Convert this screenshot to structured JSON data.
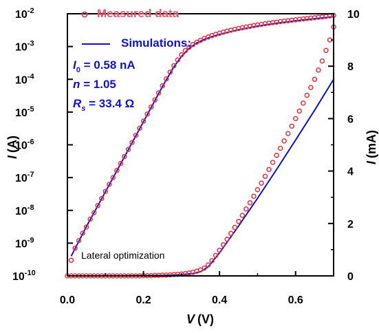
{
  "chart_data": {
    "type": "scatter",
    "x_axis": {
      "label_var": "V",
      "label_unit": "(V)",
      "range": [
        0.0,
        0.7
      ],
      "ticks": [
        0.0,
        0.2,
        0.4,
        0.6
      ],
      "tick_labels": [
        "0.0",
        "0.2",
        "0.4",
        "0.6"
      ]
    },
    "y_left_axis": {
      "label_var": "I",
      "label_unit": "(A)",
      "scale": "log",
      "range": [
        1e-10,
        0.01
      ],
      "tick_exponents": [
        -2,
        -3,
        -4,
        -5,
        -6,
        -7,
        -8,
        -9,
        -10
      ],
      "tick_base": "10"
    },
    "y_right_axis": {
      "label_var": "I",
      "label_unit": "(mA)",
      "scale": "linear",
      "range": [
        0,
        10
      ],
      "ticks": [
        0,
        2,
        4,
        6,
        8,
        10
      ],
      "tick_labels": [
        "0",
        "2",
        "4",
        "6",
        "8",
        "10"
      ]
    },
    "legend": {
      "placement": "top-left",
      "measured_label": "Measured data",
      "sim_label": "Simulations:",
      "params": [
        {
          "sym": "I",
          "sub": "0",
          "rest": " = 0.58 nA"
        },
        {
          "sym": "n",
          "sub": "",
          "rest": " = 1.05"
        },
        {
          "sym": "R",
          "sub": "s",
          "rest": " = 33.4 Ω"
        }
      ]
    },
    "annotation": "Lateral optimization",
    "colors": {
      "measured": "#e8303e",
      "simulation": "#1010d0",
      "param_text": "#1010d0",
      "legend_measured_text": "#ee5566"
    },
    "series": [
      {
        "name": "Measured data",
        "marker": "open-circle",
        "axis": "left-log",
        "x": [
          0.01,
          0.02,
          0.03,
          0.04,
          0.05,
          0.06,
          0.07,
          0.08,
          0.09,
          0.1,
          0.11,
          0.12,
          0.13,
          0.14,
          0.15,
          0.16,
          0.17,
          0.18,
          0.19,
          0.2,
          0.21,
          0.22,
          0.23,
          0.24,
          0.25,
          0.26,
          0.27,
          0.28,
          0.29,
          0.3,
          0.31,
          0.32,
          0.33,
          0.34,
          0.35,
          0.36,
          0.37,
          0.38,
          0.39,
          0.4,
          0.41,
          0.42,
          0.43,
          0.44,
          0.45,
          0.46,
          0.47,
          0.48,
          0.49,
          0.5,
          0.51,
          0.52,
          0.53,
          0.54,
          0.55,
          0.56,
          0.57,
          0.58,
          0.59,
          0.6,
          0.61,
          0.62,
          0.63,
          0.64,
          0.65,
          0.66,
          0.67,
          0.68,
          0.69,
          0.7
        ],
        "y": [
          3e-10,
          7e-10,
          1.2e-09,
          2e-09,
          3.1e-09,
          5.4e-09,
          8.5e-09,
          1.4e-08,
          2.3e-08,
          3.8e-08,
          6.2e-08,
          1e-07,
          1.65e-07,
          2.7e-07,
          4.4e-07,
          7.2e-07,
          1.18e-06,
          1.95e-06,
          3.2e-06,
          5.3e-06,
          8.7e-06,
          1.43e-05,
          2.35e-05,
          3.85e-05,
          6.3e-05,
          0.000103,
          0.000165,
          0.00026,
          0.00039,
          0.00056,
          0.00075,
          0.00095,
          0.00115,
          0.00135,
          0.00155,
          0.00175,
          0.00195,
          0.00215,
          0.00235,
          0.00255,
          0.00275,
          0.00295,
          0.00315,
          0.00335,
          0.00355,
          0.00375,
          0.00395,
          0.00415,
          0.00435,
          0.00455,
          0.00475,
          0.00495,
          0.00515,
          0.00535,
          0.00555,
          0.00575,
          0.00595,
          0.00615,
          0.00635,
          0.00655,
          0.00675,
          0.00695,
          0.00715,
          0.0074,
          0.0076,
          0.0078,
          0.008,
          0.0083,
          0.0086,
          0.0089
        ]
      },
      {
        "name": "Simulations",
        "marker": "line",
        "axis": "left-log",
        "x": [
          0.01,
          0.05,
          0.1,
          0.15,
          0.2,
          0.25,
          0.28,
          0.3,
          0.32,
          0.34,
          0.36,
          0.38,
          0.4,
          0.45,
          0.5,
          0.55,
          0.6,
          0.65,
          0.7
        ],
        "y": [
          4e-10,
          3.2e-09,
          3.7e-08,
          4.3e-07,
          5.1e-06,
          6e-05,
          0.00024,
          0.0005,
          0.00088,
          0.00128,
          0.00165,
          0.002,
          0.00235,
          0.00325,
          0.0042,
          0.00515,
          0.0061,
          0.0071,
          0.0081
        ]
      },
      {
        "name": "Measured data (linear)",
        "marker": "open-circle",
        "axis": "right-linear",
        "x": [
          0.0,
          0.01,
          0.02,
          0.03,
          0.04,
          0.05,
          0.06,
          0.07,
          0.08,
          0.09,
          0.1,
          0.11,
          0.12,
          0.13,
          0.14,
          0.15,
          0.16,
          0.17,
          0.18,
          0.19,
          0.2,
          0.21,
          0.22,
          0.23,
          0.24,
          0.25,
          0.26,
          0.27,
          0.28,
          0.29,
          0.3,
          0.31,
          0.32,
          0.33,
          0.34,
          0.35,
          0.36,
          0.37,
          0.38,
          0.39,
          0.4,
          0.41,
          0.42,
          0.43,
          0.44,
          0.45,
          0.46,
          0.47,
          0.48,
          0.49,
          0.5,
          0.51,
          0.52,
          0.53,
          0.54,
          0.55,
          0.56,
          0.57,
          0.58,
          0.59,
          0.6,
          0.61,
          0.62,
          0.63,
          0.64,
          0.65,
          0.66,
          0.67,
          0.68,
          0.69,
          0.7
        ],
        "y": [
          0,
          0,
          0,
          0,
          0,
          0,
          0,
          0,
          0,
          0,
          0,
          0,
          0,
          0,
          0,
          0,
          0,
          0,
          0,
          0,
          0.01,
          0.01,
          0.01,
          0.02,
          0.02,
          0.03,
          0.03,
          0.04,
          0.05,
          0.06,
          0.07,
          0.09,
          0.11,
          0.14,
          0.18,
          0.23,
          0.3,
          0.42,
          0.58,
          0.78,
          0.98,
          1.19,
          1.4,
          1.62,
          1.85,
          2.08,
          2.31,
          2.55,
          2.79,
          3.04,
          3.29,
          3.54,
          3.8,
          4.06,
          4.33,
          4.6,
          4.87,
          5.15,
          5.43,
          5.71,
          6,
          6.29,
          6.59,
          6.89,
          7.19,
          7.5,
          7.85,
          8.2,
          8.6,
          9.0,
          9.5
        ]
      },
      {
        "name": "Simulations (linear)",
        "marker": "line",
        "axis": "right-linear",
        "x": [
          0.0,
          0.1,
          0.2,
          0.25,
          0.3,
          0.33,
          0.35,
          0.37,
          0.4,
          0.45,
          0.5,
          0.55,
          0.6,
          0.65,
          0.7
        ],
        "y": [
          0,
          0,
          0.01,
          0.02,
          0.05,
          0.09,
          0.16,
          0.34,
          0.88,
          1.9,
          2.96,
          4.06,
          5.18,
          6.32,
          7.5
        ]
      }
    ]
  }
}
